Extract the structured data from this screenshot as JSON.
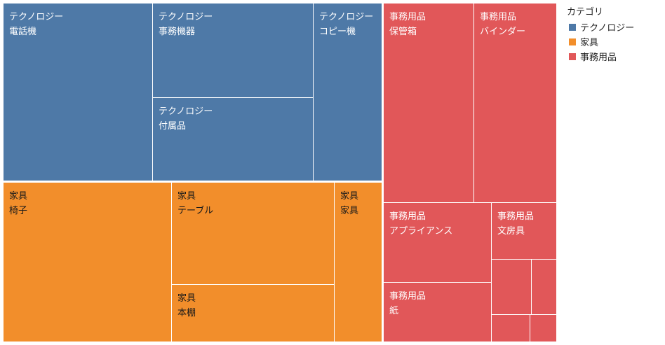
{
  "chart_data": {
    "type": "treemap",
    "legend": {
      "title": "カテゴリ",
      "placement": "top-right",
      "items": [
        {
          "label": "テクノロジー",
          "color": "#4e79a7"
        },
        {
          "label": "家具",
          "color": "#f28e2b"
        },
        {
          "label": "事務用品",
          "color": "#e15759"
        }
      ]
    },
    "categories": [
      {
        "name": "テクノロジー",
        "color": "#4e79a7",
        "items": [
          {
            "name": "電話機",
            "value": 330
          },
          {
            "name": "事務機器",
            "value": 186
          },
          {
            "name": "付属品",
            "value": 166
          },
          {
            "name": "コピー機",
            "value": 171
          }
        ]
      },
      {
        "name": "家具",
        "color": "#f28e2b",
        "items": [
          {
            "name": "椅子",
            "value": 383
          },
          {
            "name": "テーブル",
            "value": 234
          },
          {
            "name": "本棚",
            "value": 126
          },
          {
            "name": "家具",
            "value": 106
          }
        ]
      },
      {
        "name": "事務用品",
        "color": "#e15759",
        "items": [
          {
            "name": "保管箱",
            "value": 169
          },
          {
            "name": "バインダー",
            "value": 147
          },
          {
            "name": "アプライアンス",
            "value": 91
          },
          {
            "name": "文房具",
            "value": 52
          },
          {
            "name": "紙",
            "value": 79
          },
          {
            "name": "",
            "value": 28
          },
          {
            "name": "",
            "value": 18
          },
          {
            "name": "",
            "value": 20
          },
          {
            "name": "",
            "value": 17
          }
        ]
      }
    ]
  }
}
